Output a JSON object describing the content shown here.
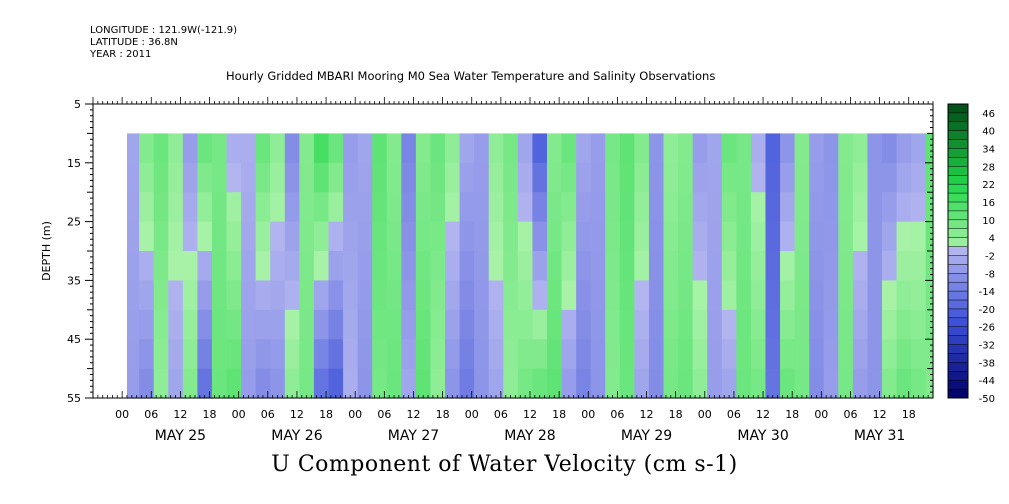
{
  "meta": {
    "longitude": "LONGITUDE : 121.9W(-121.9)",
    "latitude": "LATITUDE : 36.8N",
    "year": "YEAR : 2011"
  },
  "title": "Hourly Gridded MBARI Mooring M0 Sea Water Temperature and Salinity Observations",
  "caption": "U Component of Water Velocity (cm s-1)",
  "chart_data": {
    "type": "heatmap",
    "title": "Hourly Gridded MBARI Mooring M0 Sea Water Temperature and Salinity Observations",
    "subtitle": "U Component of Water Velocity (cm s-1)",
    "ylabel": "DEPTH (m)",
    "y_ticks": [
      5,
      15,
      25,
      35,
      45,
      55
    ],
    "ylim": [
      5,
      55
    ],
    "y_inverted": true,
    "x_start": "2011-05-24 18:00",
    "x_end": "2011-05-31 23:00",
    "x_hour_ticks": [
      "00",
      "06",
      "12",
      "18",
      "00",
      "06",
      "12",
      "18",
      "00",
      "06",
      "12",
      "18",
      "00",
      "06",
      "12",
      "18",
      "00",
      "06",
      "12",
      "18",
      "00",
      "06",
      "12",
      "18",
      "00",
      "06",
      "12",
      "18"
    ],
    "x_day_labels": [
      "MAY 25",
      "MAY 26",
      "MAY 27",
      "MAY 28",
      "MAY 29",
      "MAY 30",
      "MAY 31"
    ],
    "data_extent": {
      "time_start": "2011-05-25 01:00",
      "time_end": "2011-05-31 23:00",
      "depth_min": 10,
      "depth_max": 55
    },
    "colorbar": {
      "labels": [
        "46",
        "40",
        "34",
        "28",
        "22",
        "16",
        "10",
        "4",
        "-2",
        "-8",
        "-14",
        "-20",
        "-26",
        "-32",
        "-38",
        "-44",
        "-50"
      ],
      "min": -50,
      "max": 49,
      "step": 3
    },
    "colors": {
      "neg_deep": "#000066",
      "neg_mid": "#3a4fd8",
      "neg_light": "#b4b6f0",
      "pos_light": "#a8f2a8",
      "pos_mid": "#22d64a",
      "pos_deep": "#004a18"
    },
    "columns": [
      {
        "day": "2011-05-25 02:00",
        "u_surface": -4,
        "u_bottom": -6
      },
      {
        "day": "2011-05-25 05:00",
        "u_surface": 6,
        "u_bottom": -10
      },
      {
        "day": "2011-05-25 08:00",
        "u_surface": 10,
        "u_bottom": 4
      },
      {
        "day": "2011-05-25 11:00",
        "u_surface": 4,
        "u_bottom": -4
      },
      {
        "day": "2011-05-25 14:00",
        "u_surface": -6,
        "u_bottom": 6
      },
      {
        "day": "2011-05-25 17:00",
        "u_surface": 10,
        "u_bottom": -16
      },
      {
        "day": "2011-05-25 20:00",
        "u_surface": 8,
        "u_bottom": 10
      },
      {
        "day": "2011-05-25 23:00",
        "u_surface": -2,
        "u_bottom": 12
      },
      {
        "day": "2011-05-26 02:00",
        "u_surface": -2,
        "u_bottom": -6
      },
      {
        "day": "2011-05-26 05:00",
        "u_surface": 10,
        "u_bottom": -10
      },
      {
        "day": "2011-05-26 08:00",
        "u_surface": 4,
        "u_bottom": -8
      },
      {
        "day": "2011-05-26 11:00",
        "u_surface": -10,
        "u_bottom": 4
      },
      {
        "day": "2011-05-26 14:00",
        "u_surface": 6,
        "u_bottom": 8
      },
      {
        "day": "2011-05-26 17:00",
        "u_surface": 16,
        "u_bottom": -16
      },
      {
        "day": "2011-05-26 20:00",
        "u_surface": 10,
        "u_bottom": -20
      },
      {
        "day": "2011-05-26 23:00",
        "u_surface": -6,
        "u_bottom": -2
      },
      {
        "day": "2011-05-27 02:00",
        "u_surface": -4,
        "u_bottom": -8
      },
      {
        "day": "2011-05-27 05:00",
        "u_surface": 12,
        "u_bottom": 8
      },
      {
        "day": "2011-05-27 08:00",
        "u_surface": 6,
        "u_bottom": 10
      },
      {
        "day": "2011-05-27 11:00",
        "u_surface": -12,
        "u_bottom": -4
      },
      {
        "day": "2011-05-27 14:00",
        "u_surface": 6,
        "u_bottom": 12
      },
      {
        "day": "2011-05-27 17:00",
        "u_surface": 10,
        "u_bottom": 4
      },
      {
        "day": "2011-05-27 20:00",
        "u_surface": 4,
        "u_bottom": -8
      },
      {
        "day": "2011-05-27 23:00",
        "u_surface": -4,
        "u_bottom": -14
      },
      {
        "day": "2011-05-28 02:00",
        "u_surface": -6,
        "u_bottom": -8
      },
      {
        "day": "2011-05-28 05:00",
        "u_surface": 4,
        "u_bottom": -4
      },
      {
        "day": "2011-05-28 08:00",
        "u_surface": 8,
        "u_bottom": 4
      },
      {
        "day": "2011-05-28 11:00",
        "u_surface": -4,
        "u_bottom": 8
      },
      {
        "day": "2011-05-28 14:00",
        "u_surface": -20,
        "u_bottom": 10
      },
      {
        "day": "2011-05-28 17:00",
        "u_surface": 6,
        "u_bottom": 12
      },
      {
        "day": "2011-05-28 20:00",
        "u_surface": 10,
        "u_bottom": -6
      },
      {
        "day": "2011-05-28 23:00",
        "u_surface": -4,
        "u_bottom": -12
      },
      {
        "day": "2011-05-29 02:00",
        "u_surface": -6,
        "u_bottom": -8
      },
      {
        "day": "2011-05-29 05:00",
        "u_surface": 8,
        "u_bottom": 6
      },
      {
        "day": "2011-05-29 08:00",
        "u_surface": 12,
        "u_bottom": 10
      },
      {
        "day": "2011-05-29 11:00",
        "u_surface": 6,
        "u_bottom": -4
      },
      {
        "day": "2011-05-29 14:00",
        "u_surface": -8,
        "u_bottom": -10
      },
      {
        "day": "2011-05-29 17:00",
        "u_surface": 4,
        "u_bottom": 8
      },
      {
        "day": "2011-05-29 20:00",
        "u_surface": 6,
        "u_bottom": 10
      },
      {
        "day": "2011-05-29 23:00",
        "u_surface": -6,
        "u_bottom": 4
      },
      {
        "day": "2011-05-30 02:00",
        "u_surface": -4,
        "u_bottom": -6
      },
      {
        "day": "2011-05-30 05:00",
        "u_surface": 10,
        "u_bottom": -4
      },
      {
        "day": "2011-05-30 08:00",
        "u_surface": 8,
        "u_bottom": 10
      },
      {
        "day": "2011-05-30 11:00",
        "u_surface": -2,
        "u_bottom": 8
      },
      {
        "day": "2011-05-30 14:00",
        "u_surface": -20,
        "u_bottom": -16
      },
      {
        "day": "2011-05-30 17:00",
        "u_surface": -8,
        "u_bottom": 10
      },
      {
        "day": "2011-05-30 20:00",
        "u_surface": 6,
        "u_bottom": 8
      },
      {
        "day": "2011-05-30 23:00",
        "u_surface": -6,
        "u_bottom": -10
      },
      {
        "day": "2011-05-31 02:00",
        "u_surface": -8,
        "u_bottom": -6
      },
      {
        "day": "2011-05-31 05:00",
        "u_surface": 6,
        "u_bottom": 8
      },
      {
        "day": "2011-05-31 08:00",
        "u_surface": 4,
        "u_bottom": -6
      },
      {
        "day": "2011-05-31 11:00",
        "u_surface": -8,
        "u_bottom": -8
      },
      {
        "day": "2011-05-31 14:00",
        "u_surface": -10,
        "u_bottom": 6
      },
      {
        "day": "2011-05-31 17:00",
        "u_surface": -6,
        "u_bottom": 10
      },
      {
        "day": "2011-05-31 20:00",
        "u_surface": -4,
        "u_bottom": 8
      },
      {
        "day": "2011-05-31 23:00",
        "u_surface": 12,
        "u_bottom": 6
      }
    ]
  }
}
